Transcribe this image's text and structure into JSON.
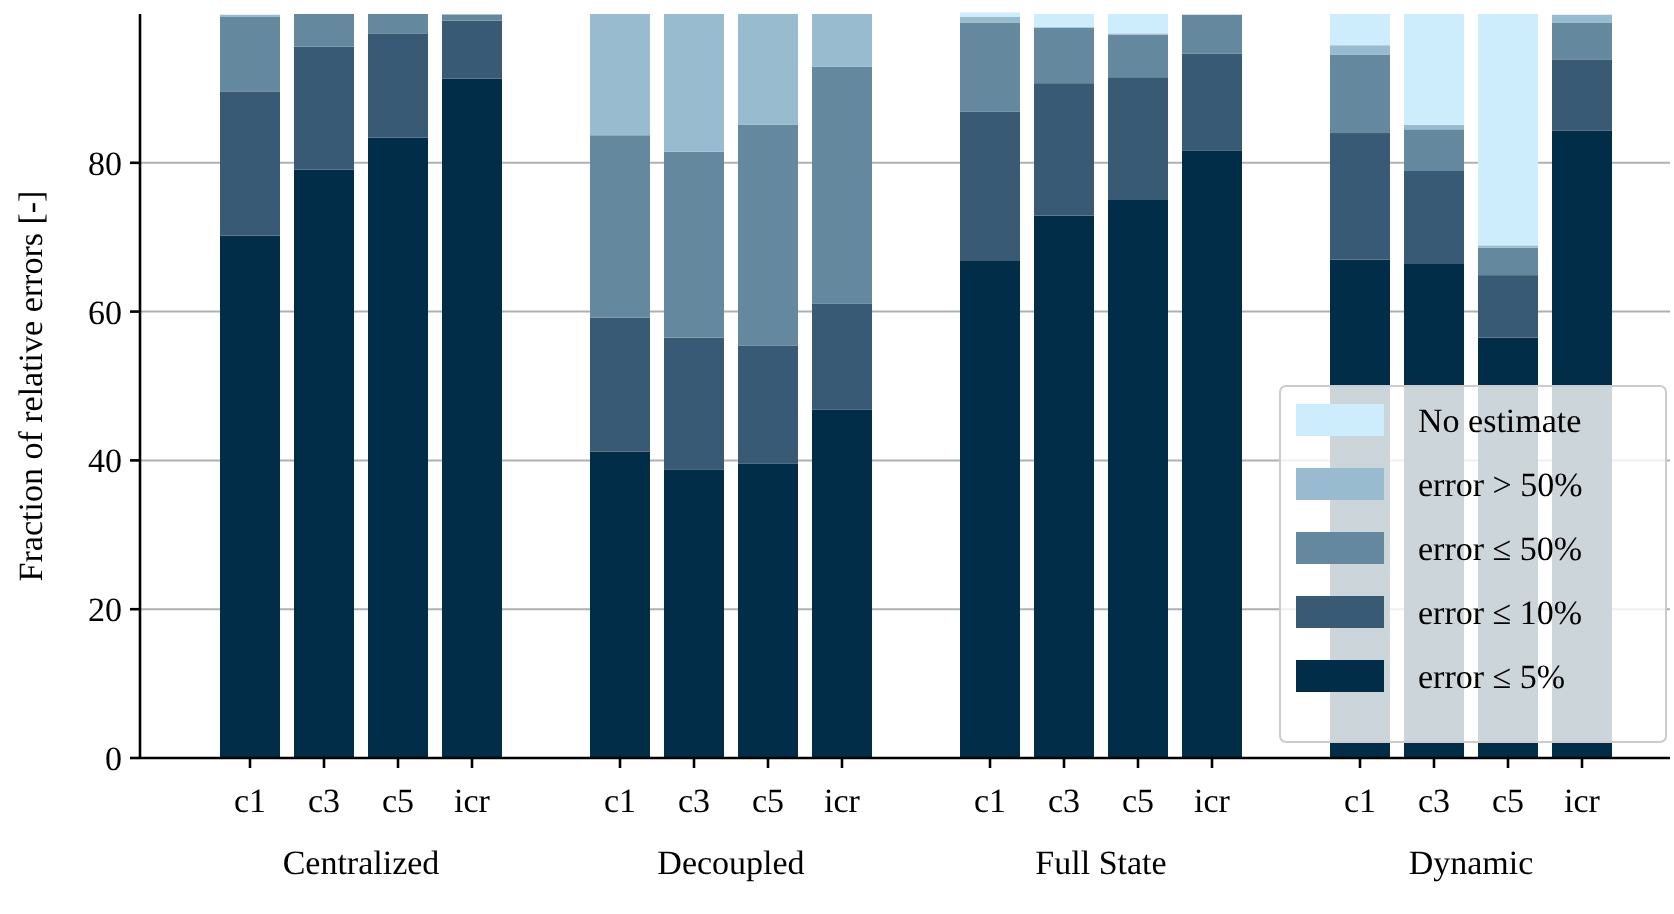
{
  "chart_data": {
    "type": "bar",
    "stacked": true,
    "ylabel": "Fraction of relative errors [-]",
    "categories": [
      "c1",
      "c3",
      "c5",
      "icr",
      "c1",
      "c3",
      "c5",
      "icr",
      "c1",
      "c3",
      "c5",
      "icr",
      "c1",
      "c3",
      "c5",
      "icr"
    ],
    "series": [
      {
        "name": "error ≤ 5%",
        "color": "#022d48",
        "values": [
          70.2,
          79.1,
          83.4,
          91.3,
          41.2,
          38.8,
          39.6,
          46.8,
          66.8,
          72.9,
          75.0,
          81.6,
          67.0,
          66.5,
          56.5,
          84.3
        ]
      },
      {
        "name": "error ≤ 10%",
        "color": "#385a74",
        "values": [
          19.4,
          16.5,
          14.0,
          7.8,
          18.0,
          17.7,
          15.8,
          14.3,
          20.1,
          17.8,
          16.5,
          13.1,
          17.0,
          12.4,
          8.4,
          9.6
        ]
      },
      {
        "name": "error ≤ 50%",
        "color": "#64889e",
        "values": [
          10.0,
          4.4,
          2.6,
          0.8,
          24.5,
          25.0,
          29.7,
          31.8,
          11.9,
          7.5,
          5.7,
          5.2,
          10.5,
          5.6,
          3.7,
          4.9
        ]
      },
      {
        "name": "error > 50%",
        "color": "#98bbcf",
        "values": [
          0.3,
          0,
          0,
          0.1,
          16.3,
          18.5,
          14.9,
          7.1,
          0.8,
          0,
          0.2,
          0,
          1.3,
          0.6,
          0.3,
          1.1
        ]
      },
      {
        "name": "No estimate",
        "color": "#cdedfc",
        "values": [
          0,
          0,
          0,
          0,
          0,
          0,
          0,
          0,
          0.6,
          1.8,
          2.6,
          0,
          4.2,
          14.9,
          31.1,
          0
        ]
      }
    ],
    "ylim": [
      0,
      100
    ],
    "yticks": [
      0,
      20,
      40,
      60,
      80
    ],
    "grid": "y",
    "legend": "bottom right",
    "annotations": [
      "Centralized",
      "Decoupled",
      "Full State",
      "Dynamic"
    ]
  }
}
